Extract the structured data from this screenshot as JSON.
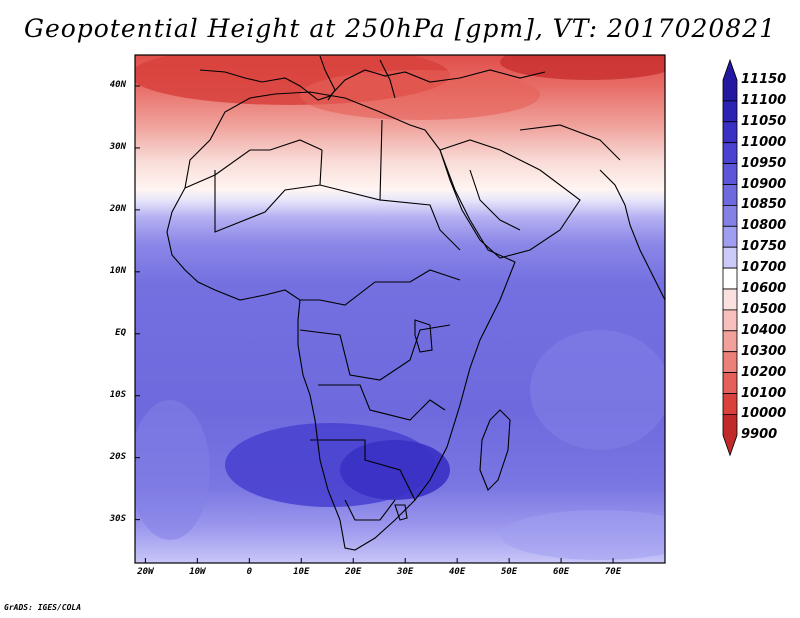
{
  "title": "Geopotential Height at 250hPa [gpm], VT: 2017020821",
  "credit": "GrADS: IGES/COLA",
  "map": {
    "lat_labels": [
      "40N",
      "30N",
      "20N",
      "10N",
      "EQ",
      "10S",
      "20S",
      "30S"
    ],
    "lat_values": [
      40,
      30,
      20,
      10,
      0,
      -10,
      -20,
      -30
    ],
    "lon_labels": [
      "20W",
      "10W",
      "0",
      "10E",
      "20E",
      "30E",
      "40E",
      "50E",
      "60E",
      "70E"
    ],
    "lon_values": [
      -20,
      -10,
      0,
      10,
      20,
      30,
      40,
      50,
      60,
      70
    ],
    "lat_range": [
      -37,
      45
    ],
    "lon_range": [
      -22,
      80
    ]
  },
  "colorbar": {
    "levels": [
      "11150",
      "11100",
      "11050",
      "11000",
      "10950",
      "10900",
      "10850",
      "10800",
      "10750",
      "10700",
      "10600",
      "10500",
      "10400",
      "10300",
      "10200",
      "10100",
      "10000",
      "9900"
    ],
    "colors": [
      "#2418a0",
      "#2c22b4",
      "#3a30c4",
      "#4a42d0",
      "#5c56d8",
      "#6e6ade",
      "#8480e6",
      "#a09ef0",
      "#cccaf8",
      "#ffffff",
      "#fae0de",
      "#f7c0bc",
      "#f2a09a",
      "#eb8078",
      "#e46058",
      "#d8413c",
      "#c02a2a"
    ]
  }
}
